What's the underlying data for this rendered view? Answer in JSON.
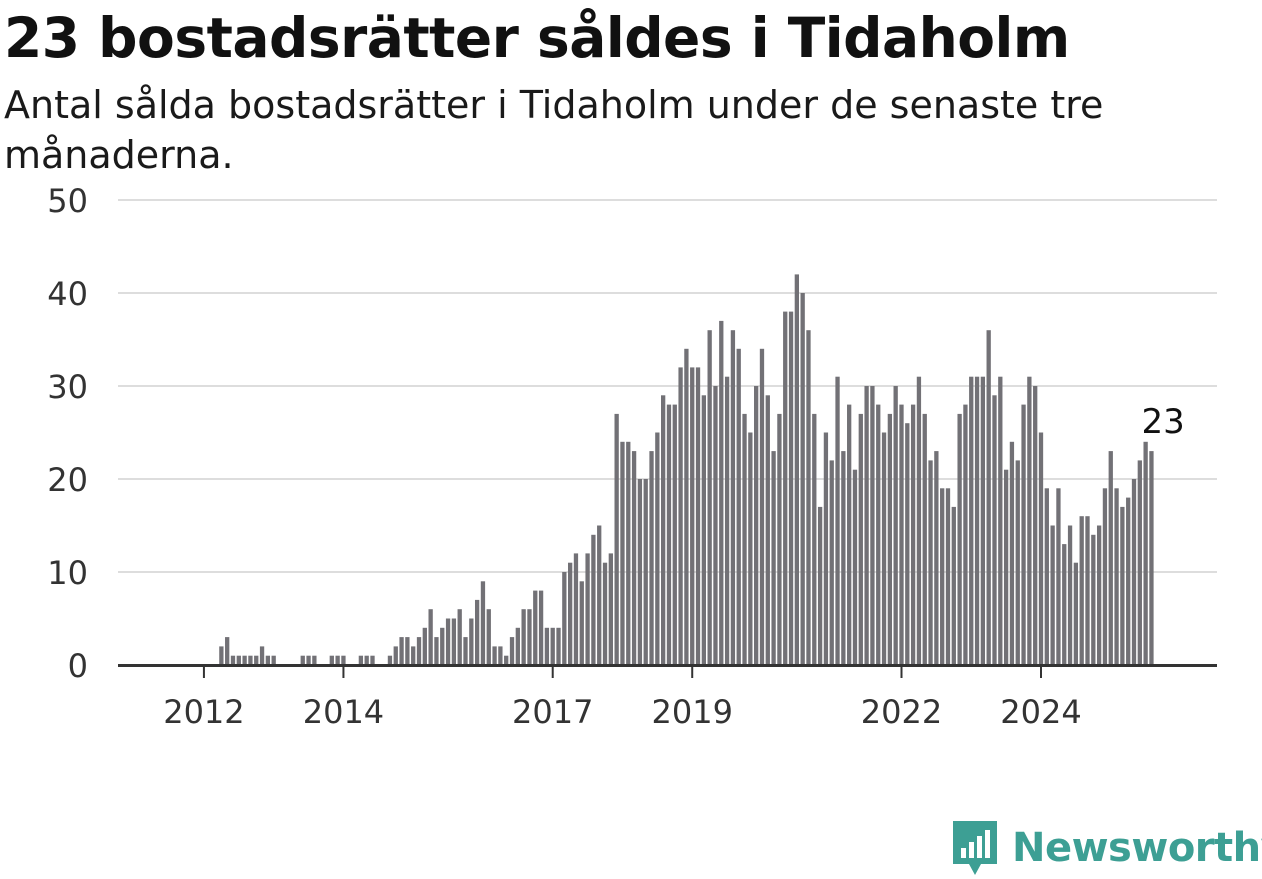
{
  "title": "23 bostadsrätter såldes i Tidaholm",
  "subtitle": "Antal sålda bostadsrätter i Tidaholm under de senaste tre månaderna.",
  "brand": "Newsworthy",
  "colors": {
    "bar": "#727176",
    "highlight": "#1f9f96",
    "grid": "#dddddd",
    "axis": "#333333",
    "brand": "#3d9f94"
  },
  "chart_data": {
    "type": "bar",
    "title": "23 bostadsrätter såldes i Tidaholm",
    "subtitle": "Antal sålda bostadsrätter i Tidaholm under de senaste tre månaderna.",
    "xlabel": "",
    "ylabel": "",
    "ylim": [
      0,
      50
    ],
    "yticks": [
      0,
      10,
      20,
      30,
      40,
      50
    ],
    "xtick_labels": [
      "2012",
      "2014",
      "2017",
      "2019",
      "2022",
      "2024"
    ],
    "grid": true,
    "start_period": "2011-07",
    "series": [
      {
        "values": [
          0,
          0,
          0,
          0,
          0,
          0,
          0,
          0,
          0,
          2,
          3,
          1,
          1,
          1,
          1,
          1,
          2,
          1,
          1,
          0,
          0,
          0,
          0,
          1,
          1,
          1,
          0,
          0,
          1,
          1,
          1,
          0,
          0,
          1,
          1,
          1,
          0,
          0,
          1,
          2,
          3,
          3,
          2,
          3,
          4,
          6,
          3,
          4,
          5,
          5,
          6,
          3,
          5,
          7,
          9,
          6,
          2,
          2,
          1,
          3,
          4,
          6,
          6,
          8,
          8,
          4,
          4,
          4,
          10,
          11,
          12,
          9,
          12,
          14,
          15,
          11,
          12,
          27,
          24,
          24,
          23,
          20,
          20,
          23,
          25,
          29,
          28,
          28,
          32,
          34,
          32,
          32,
          29,
          36,
          30,
          37,
          31,
          36,
          34,
          27,
          25,
          30,
          34,
          29,
          23,
          27,
          38,
          38,
          42,
          40,
          36,
          27,
          17,
          25,
          22,
          31,
          23,
          28,
          21,
          27,
          30,
          30,
          28,
          25,
          27,
          30,
          28,
          26,
          28,
          31,
          27,
          22,
          23,
          19,
          19,
          17,
          27,
          28,
          31,
          31,
          31,
          36,
          29,
          31,
          21,
          24,
          22,
          28,
          31,
          30,
          25,
          19,
          15,
          19,
          13,
          15,
          11,
          16,
          16,
          14,
          15,
          19,
          23,
          19,
          17,
          18,
          20,
          22,
          24,
          23
        ]
      }
    ],
    "highlight": {
      "index": 171,
      "value": 23,
      "label": "23"
    }
  }
}
